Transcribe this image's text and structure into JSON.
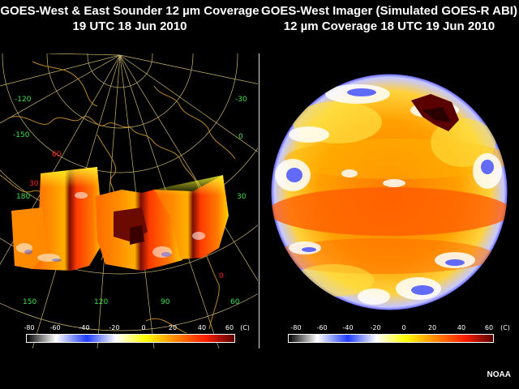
{
  "left": {
    "title_line1": "GOES-West & East Sounder 12 µm Coverage",
    "title_line2": "19 UTC  18 Jun 2010",
    "grid_labels_green": [
      "-120",
      "-150",
      "180",
      "-30",
      "0",
      "30",
      "150",
      "120",
      "90",
      "60"
    ],
    "grid_labels_red": [
      "60",
      "30",
      "0"
    ],
    "colorbar_ticks": [
      "-80",
      "-60",
      "-40",
      "-20",
      "0",
      "20",
      "40",
      "60"
    ],
    "colorbar_unit": "(C)"
  },
  "right": {
    "title_line1": "GOES-West Imager (Simulated GOES-R ABI)",
    "title_line2": "12 µm Coverage 18 UTC 19 Jun 2010",
    "colorbar_ticks": [
      "-80",
      "-60",
      "-40",
      "-20",
      "0",
      "20",
      "40",
      "60"
    ],
    "colorbar_unit": "(C)"
  },
  "colorscale": [
    "#000000",
    "#ffffff",
    "#1e3cff",
    "#ffffff",
    "#ffff00",
    "#ff8c00",
    "#ff1e00",
    "#5a0000"
  ],
  "credit": "NOAA"
}
